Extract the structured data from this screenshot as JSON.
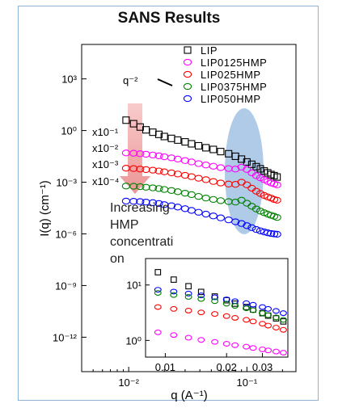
{
  "chart_data": [
    {
      "type": "scatter",
      "title": "SANS Results",
      "xlabel": "q (A⁻¹)",
      "ylabel": "I(q) (cm⁻¹)",
      "x_scale": "log",
      "y_scale": "log",
      "xlim": [
        0.004,
        0.26
      ],
      "ylim": [
        1e-14,
        100000.0
      ],
      "x_ticks": [
        {
          "value": 0.01,
          "label": "10⁻²"
        },
        {
          "value": 0.1,
          "label": "10⁻¹"
        }
      ],
      "y_ticks": [
        {
          "value": 1000,
          "label": "10³"
        },
        {
          "value": 1,
          "label": "10⁰"
        },
        {
          "value": 0.001,
          "label": "10⁻³"
        },
        {
          "value": 1e-06,
          "label": "10⁻⁶"
        },
        {
          "value": 1e-09,
          "label": "10⁻⁹"
        },
        {
          "value": 1e-12,
          "label": "10⁻¹²"
        }
      ],
      "legend_position": "top-right",
      "series": [
        {
          "name": "LIP",
          "color": "#000000",
          "marker": "square",
          "x": [
            0.0095,
            0.011,
            0.0125,
            0.014,
            0.016,
            0.018,
            0.02,
            0.023,
            0.026,
            0.03,
            0.034,
            0.039,
            0.045,
            0.052,
            0.06,
            0.07,
            0.08,
            0.09,
            0.1,
            0.11,
            0.12,
            0.13,
            0.14,
            0.15,
            0.16,
            0.17,
            0.18
          ],
          "y": [
            4.0,
            2.5,
            1.6,
            1.1,
            0.8,
            0.6,
            0.45,
            0.35,
            0.28,
            0.22,
            0.17,
            0.13,
            0.1,
            0.08,
            0.06,
            0.045,
            0.032,
            0.022,
            0.015,
            0.011,
            0.008,
            0.006,
            0.0045,
            0.0035,
            0.0028,
            0.0024,
            0.002
          ]
        },
        {
          "name": "LIP0125HMP",
          "color": "#ff00ff",
          "marker": "circle",
          "x": [
            0.0095,
            0.011,
            0.0125,
            0.014,
            0.016,
            0.018,
            0.02,
            0.023,
            0.026,
            0.03,
            0.034,
            0.039,
            0.045,
            0.052,
            0.06,
            0.07,
            0.08,
            0.09,
            0.1,
            0.11,
            0.12,
            0.13,
            0.14,
            0.15,
            0.16,
            0.17,
            0.18
          ],
          "y": [
            0.05,
            0.048,
            0.045,
            0.042,
            0.038,
            0.034,
            0.03,
            0.026,
            0.022,
            0.018,
            0.015,
            0.012,
            0.01,
            0.0085,
            0.007,
            0.0062,
            0.0058,
            0.0075,
            0.0055,
            0.0035,
            0.0024,
            0.0018,
            0.0014,
            0.0011,
            0.0009,
            0.0008,
            0.0007
          ]
        },
        {
          "name": "LIP025HMP",
          "color": "#ff0000",
          "marker": "circle",
          "x": [
            0.0095,
            0.011,
            0.0125,
            0.014,
            0.016,
            0.018,
            0.02,
            0.023,
            0.026,
            0.03,
            0.034,
            0.039,
            0.045,
            0.052,
            0.06,
            0.07,
            0.08,
            0.09,
            0.1,
            0.11,
            0.12,
            0.13,
            0.14,
            0.15,
            0.16,
            0.17,
            0.18
          ],
          "y": [
            0.0065,
            0.0062,
            0.0058,
            0.0054,
            0.005,
            0.0045,
            0.004,
            0.0035,
            0.003,
            0.0025,
            0.0021,
            0.0017,
            0.0014,
            0.0011,
            0.0009,
            0.00078,
            0.00075,
            0.001,
            0.0007,
            0.00045,
            0.0003,
            0.00022,
            0.00017,
            0.00014,
            0.00012,
            0.0001,
            9e-05
          ]
        },
        {
          "name": "LIP0375HMP",
          "color": "#008000",
          "marker": "circle",
          "x": [
            0.0095,
            0.011,
            0.0125,
            0.014,
            0.016,
            0.018,
            0.02,
            0.023,
            0.026,
            0.03,
            0.034,
            0.039,
            0.045,
            0.052,
            0.06,
            0.07,
            0.08,
            0.09,
            0.1,
            0.11,
            0.12,
            0.13,
            0.14,
            0.15,
            0.16,
            0.17,
            0.18
          ],
          "y": [
            0.0006,
            0.00058,
            0.00055,
            0.00051,
            0.00047,
            0.00043,
            0.00038,
            0.00033,
            0.00028,
            0.00023,
            0.00019,
            0.00015,
            0.00012,
            0.0001,
            8.5e-05,
            7.5e-05,
            7e-05,
            9e-05,
            6e-05,
            4e-05,
            2.8e-05,
            2.1e-05,
            1.7e-05,
            1.4e-05,
            1.2e-05,
            1.05e-05,
            9e-06
          ]
        },
        {
          "name": "LIP050HMP",
          "color": "#0000ff",
          "marker": "circle",
          "x": [
            0.0095,
            0.011,
            0.0125,
            0.014,
            0.016,
            0.018,
            0.02,
            0.023,
            0.026,
            0.03,
            0.034,
            0.039,
            0.045,
            0.052,
            0.06,
            0.07,
            0.08,
            0.09,
            0.1,
            0.11,
            0.12,
            0.13,
            0.14,
            0.15,
            0.16,
            0.17,
            0.18
          ],
          "y": [
            8e-05,
            7.8e-05,
            7.5e-05,
            7e-05,
            6.5e-05,
            5.8e-05,
            5e-05,
            4.3e-05,
            3.6e-05,
            2.9e-05,
            2.3e-05,
            1.8e-05,
            1.4e-05,
            1.1e-05,
            8.5e-06,
            6.5e-06,
            5e-06,
            4e-06,
            3e-06,
            2.3e-06,
            1.8e-06,
            1.5e-06,
            1.3e-06,
            1.15e-06,
            1.05e-06,
            1e-06,
            9.5e-07
          ]
        }
      ],
      "annotations": {
        "slope": "q⁻²",
        "offsets": [
          "x10⁻¹",
          "x10⁻²",
          "x10⁻³",
          "x10⁻⁴"
        ],
        "arrow_lines": [
          "Increasing",
          "HMP",
          "concentrati",
          "on"
        ]
      }
    },
    {
      "type": "scatter",
      "inset": true,
      "x_scale": "log",
      "y_scale": "log",
      "xlim": [
        0.008,
        0.04
      ],
      "ylim": [
        0.5,
        30
      ],
      "x_ticks": [
        {
          "value": 0.01,
          "label": "0.01"
        },
        {
          "value": 0.02,
          "label": "0.02"
        },
        {
          "value": 0.03,
          "label": "0.03"
        }
      ],
      "y_ticks": [
        {
          "value": 1,
          "label": "10⁰"
        },
        {
          "value": 10,
          "label": "10¹"
        }
      ],
      "series": [
        {
          "color": "#000000",
          "marker": "square",
          "x": [
            0.0092,
            0.011,
            0.013,
            0.015,
            0.0175,
            0.02,
            0.022,
            0.025,
            0.027,
            0.03,
            0.032,
            0.035,
            0.038
          ],
          "y": [
            17,
            12.5,
            9.5,
            7.5,
            6.2,
            5.3,
            4.6,
            4.0,
            3.6,
            3.1,
            2.8,
            2.5,
            2.2
          ]
        },
        {
          "color": "#0000ff",
          "marker": "circle",
          "x": [
            0.0092,
            0.011,
            0.013,
            0.015,
            0.0175,
            0.02,
            0.022,
            0.025,
            0.027,
            0.03,
            0.032,
            0.035,
            0.038
          ],
          "y": [
            8.2,
            7.6,
            7.0,
            6.5,
            6.0,
            5.5,
            5.1,
            4.7,
            4.4,
            4.0,
            3.7,
            3.4,
            3.1
          ]
        },
        {
          "color": "#008000",
          "marker": "circle",
          "x": [
            0.0092,
            0.011,
            0.013,
            0.015,
            0.0175,
            0.02,
            0.022,
            0.025,
            0.027,
            0.03,
            0.032,
            0.035,
            0.038
          ],
          "y": [
            7.2,
            6.6,
            6.1,
            5.6,
            5.1,
            4.6,
            4.2,
            3.8,
            3.5,
            3.1,
            2.85,
            2.6,
            2.35
          ]
        },
        {
          "color": "#ff0000",
          "marker": "circle",
          "x": [
            0.0092,
            0.011,
            0.013,
            0.015,
            0.0175,
            0.02,
            0.022,
            0.025,
            0.027,
            0.03,
            0.032,
            0.035,
            0.038
          ],
          "y": [
            4.0,
            3.7,
            3.45,
            3.2,
            3.0,
            2.75,
            2.55,
            2.35,
            2.2,
            2.0,
            1.85,
            1.7,
            1.55
          ]
        },
        {
          "color": "#ff00ff",
          "marker": "circle",
          "x": [
            0.0092,
            0.011,
            0.013,
            0.015,
            0.0175,
            0.02,
            0.022,
            0.025,
            0.027,
            0.03,
            0.032,
            0.035,
            0.038
          ],
          "y": [
            1.4,
            1.25,
            1.12,
            1.02,
            0.94,
            0.87,
            0.82,
            0.77,
            0.73,
            0.69,
            0.66,
            0.63,
            0.6
          ]
        }
      ]
    }
  ]
}
